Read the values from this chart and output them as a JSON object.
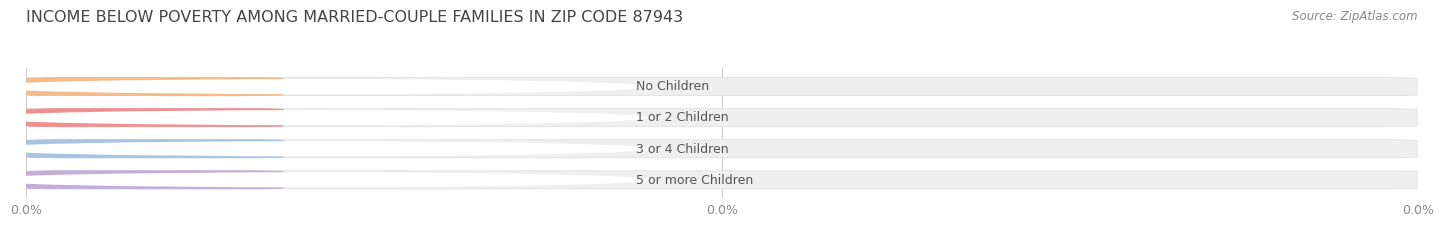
{
  "title": "INCOME BELOW POVERTY AMONG MARRIED-COUPLE FAMILIES IN ZIP CODE 87943",
  "source": "Source: ZipAtlas.com",
  "categories": [
    "No Children",
    "1 or 2 Children",
    "3 or 4 Children",
    "5 or more Children"
  ],
  "values": [
    0.0,
    0.0,
    0.0,
    0.0
  ],
  "bar_colors": [
    "#f5b98a",
    "#ef9090",
    "#a8c4e0",
    "#c4aed8"
  ],
  "background_color": "#ffffff",
  "bar_bg_color": "#efefef",
  "bar_bg_edge_color": "#e0e0e0",
  "label_color": "#555555",
  "value_color": "#ffffff",
  "title_color": "#444444",
  "source_color": "#888888",
  "title_fontsize": 11.5,
  "label_fontsize": 9,
  "value_fontsize": 8,
  "source_fontsize": 8.5,
  "xtick_labels": [
    "0.0%",
    "0.0%",
    "0.0%"
  ],
  "xtick_positions": [
    0.0,
    0.5,
    1.0
  ]
}
